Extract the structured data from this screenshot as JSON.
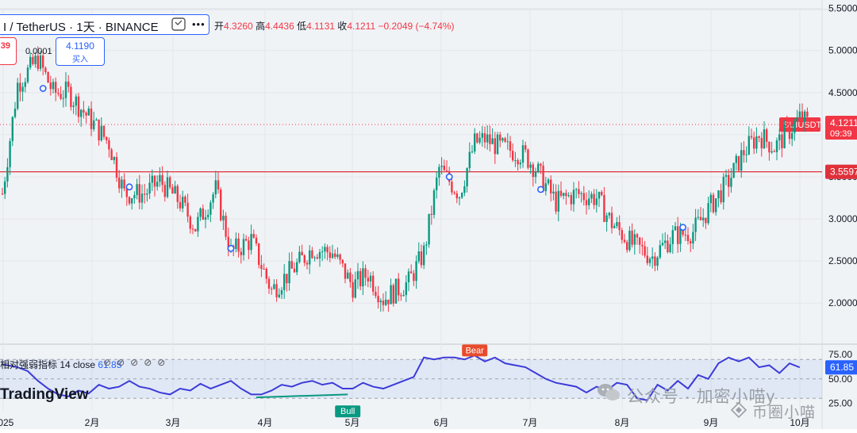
{
  "header": {
    "title": "I / TetherUS · 1天 · BINANCE",
    "more_icon": "more-dots-icon",
    "toggle_icon": "toggle-icon"
  },
  "ohlc": {
    "open_label": "开",
    "open": "4.3260",
    "high_label": "高",
    "high": "4.4436",
    "low_label": "低",
    "low": "4.1131",
    "close_label": "收",
    "close": "4.1211",
    "change": "−0.2049 (−4.74%)"
  },
  "trade": {
    "sell_price": "39",
    "spread": "0.0001",
    "buy_price": "4.1190",
    "buy_label": "买入"
  },
  "rsi_panel": {
    "label": "相对强弱指标 14 close",
    "value": "61.85",
    "icons": [
      "hidden-eye-icon",
      "hidden-eye-icon",
      "hidden-eye-icon",
      "hidden-eye-icon",
      "hidden-eye-icon"
    ]
  },
  "logo": {
    "text": "TradingView"
  },
  "watermark": {
    "text1": "公众号 · 加密小喵y",
    "text2": "币圈小喵"
  },
  "colors": {
    "up": "#089981",
    "down": "#f23645",
    "rsi": "#3d3bd9",
    "accent": "#2962ff",
    "level": "#e0303a"
  },
  "chart_data": {
    "type": "candlestick",
    "symbol": "SUIUSDT",
    "interval": "1D",
    "x_ticks": [
      "2025",
      "2月",
      "3月",
      "4月",
      "5月",
      "6月",
      "7月",
      "8月",
      "9月",
      "10月"
    ],
    "price_axis": {
      "ticks": [
        "5.5000",
        "5.0000",
        "4.5000",
        "4.0000",
        "3.5000",
        "3.0000",
        "2.5000",
        "2.0000"
      ],
      "range": [
        1.55,
        5.6
      ]
    },
    "last_price": {
      "symbol": "SUIUSDT",
      "value": "4.1211",
      "countdown": "09:39",
      "value_num": 4.1211
    },
    "horizontal_level": {
      "value": "3.5597",
      "value_num": 3.5597
    },
    "close_path": [
      [
        0,
        3.3
      ],
      [
        6,
        4.6
      ],
      [
        14,
        4.9
      ],
      [
        20,
        4.5
      ],
      [
        26,
        4.5
      ],
      [
        34,
        4.2
      ],
      [
        42,
        3.9
      ],
      [
        48,
        3.3
      ],
      [
        56,
        3.3
      ],
      [
        62,
        3.45
      ],
      [
        70,
        3.2
      ],
      [
        76,
        2.9
      ],
      [
        84,
        3.35
      ],
      [
        90,
        2.6
      ],
      [
        98,
        2.75
      ],
      [
        106,
        2.15
      ],
      [
        116,
        2.45
      ],
      [
        122,
        2.65
      ],
      [
        130,
        2.6
      ],
      [
        138,
        2.2
      ],
      [
        144,
        2.35
      ],
      [
        150,
        2.05
      ],
      [
        160,
        2.25
      ],
      [
        166,
        2.6
      ],
      [
        172,
        3.6
      ],
      [
        180,
        3.3
      ],
      [
        186,
        3.9
      ],
      [
        190,
        3.95
      ],
      [
        196,
        3.85
      ],
      [
        202,
        3.8
      ],
      [
        206,
        3.75
      ],
      [
        210,
        3.6
      ],
      [
        218,
        3.2
      ],
      [
        226,
        3.3
      ],
      [
        234,
        3.25
      ],
      [
        240,
        2.95
      ],
      [
        248,
        2.7
      ],
      [
        256,
        2.55
      ],
      [
        264,
        2.8
      ],
      [
        272,
        2.85
      ],
      [
        280,
        3.2
      ],
      [
        286,
        3.45
      ],
      [
        292,
        3.8
      ],
      [
        298,
        4.0
      ],
      [
        304,
        3.85
      ],
      [
        310,
        4.05
      ],
      [
        314,
        4.2
      ],
      [
        318,
        4.1211
      ]
    ],
    "markers": [
      {
        "x": 16,
        "value": 4.55
      },
      {
        "x": 50,
        "value": 3.38
      },
      {
        "x": 90,
        "value": 2.65
      },
      {
        "x": 176,
        "value": 3.5
      },
      {
        "x": 212,
        "value": 3.35
      },
      {
        "x": 268,
        "value": 2.9
      }
    ],
    "rsi": {
      "name": "相对强弱指标 14 close",
      "levels": [
        30,
        50,
        70
      ],
      "axis_ticks": [
        "75.00",
        "50.00",
        "25.00"
      ],
      "range": [
        18,
        80
      ],
      "last": {
        "value": "61.85",
        "value_num": 61.85
      },
      "labels": [
        {
          "text": "Bear",
          "x": 186,
          "value": 74
        },
        {
          "text": "Bull",
          "x": 136,
          "value": 26
        }
      ],
      "divergence": {
        "x1": 100,
        "v1": 31,
        "x2": 136,
        "v2": 34
      },
      "values": [
        [
          0,
          65
        ],
        [
          6,
          62
        ],
        [
          10,
          58
        ],
        [
          14,
          48
        ],
        [
          18,
          40
        ],
        [
          22,
          34
        ],
        [
          26,
          32
        ],
        [
          30,
          38
        ],
        [
          34,
          35
        ],
        [
          38,
          44
        ],
        [
          42,
          40
        ],
        [
          46,
          42
        ],
        [
          50,
          48
        ],
        [
          54,
          42
        ],
        [
          58,
          40
        ],
        [
          62,
          36
        ],
        [
          66,
          34
        ],
        [
          70,
          40
        ],
        [
          74,
          38
        ],
        [
          78,
          45
        ],
        [
          82,
          40
        ],
        [
          86,
          44
        ],
        [
          90,
          48
        ],
        [
          94,
          40
        ],
        [
          98,
          34
        ],
        [
          102,
          34
        ],
        [
          106,
          38
        ],
        [
          110,
          44
        ],
        [
          114,
          42
        ],
        [
          118,
          46
        ],
        [
          122,
          48
        ],
        [
          126,
          44
        ],
        [
          130,
          46
        ],
        [
          134,
          40
        ],
        [
          138,
          40
        ],
        [
          142,
          46
        ],
        [
          146,
          42
        ],
        [
          150,
          40
        ],
        [
          154,
          44
        ],
        [
          158,
          48
        ],
        [
          162,
          52
        ],
        [
          166,
          72
        ],
        [
          170,
          70
        ],
        [
          174,
          72
        ],
        [
          178,
          72
        ],
        [
          182,
          70
        ],
        [
          186,
          74
        ],
        [
          190,
          68
        ],
        [
          194,
          72
        ],
        [
          198,
          66
        ],
        [
          202,
          64
        ],
        [
          206,
          62
        ],
        [
          210,
          56
        ],
        [
          214,
          50
        ],
        [
          218,
          46
        ],
        [
          222,
          44
        ],
        [
          226,
          42
        ],
        [
          230,
          36
        ],
        [
          234,
          42
        ],
        [
          238,
          38
        ],
        [
          242,
          46
        ],
        [
          246,
          44
        ],
        [
          250,
          30
        ],
        [
          254,
          28
        ],
        [
          258,
          44
        ],
        [
          262,
          38
        ],
        [
          266,
          48
        ],
        [
          270,
          40
        ],
        [
          274,
          54
        ],
        [
          278,
          50
        ],
        [
          282,
          66
        ],
        [
          286,
          72
        ],
        [
          290,
          68
        ],
        [
          294,
          72
        ],
        [
          298,
          62
        ],
        [
          302,
          64
        ],
        [
          306,
          56
        ],
        [
          310,
          66
        ],
        [
          314,
          61.85
        ]
      ]
    }
  }
}
